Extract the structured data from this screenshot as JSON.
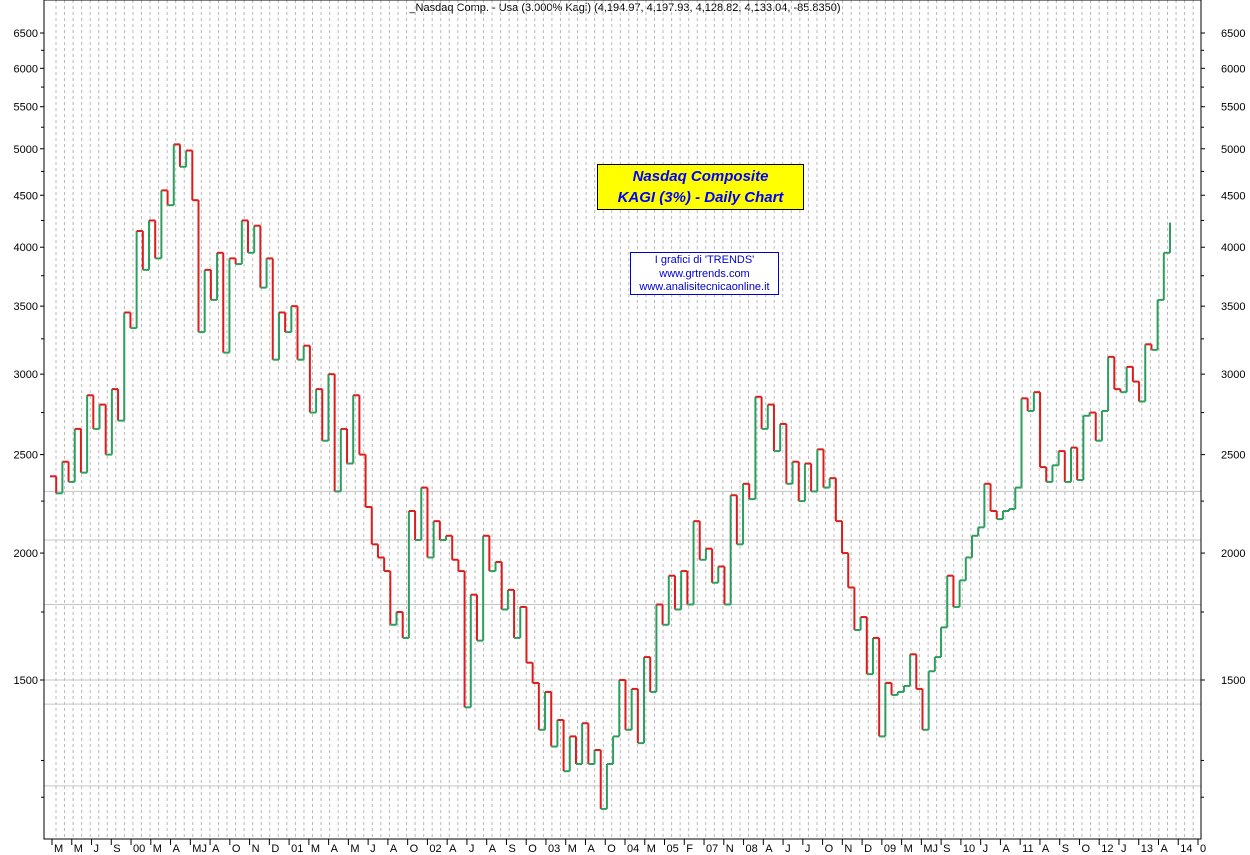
{
  "header": {
    "text": "_Nasdaq Comp. - Usa (3.000% Kagi)  (4,194.97, 4,197.93, 4,128.82, 4,133.04, -85.8350)"
  },
  "title_box": {
    "line1": "Nasdaq Composite",
    "line2": "KAGI (3%) -  Daily Chart"
  },
  "credit_box": {
    "line1": "I grafici di 'TRENDS'",
    "line2": "www.grtrends.com",
    "line3": "www.analisitecnicaonline.it"
  },
  "chart_data": {
    "type": "line",
    "subtype": "kagi",
    "reversal_percent": 3,
    "scale": "log",
    "ylim": [
      1050,
      7000
    ],
    "y_ticks": [
      6500,
      6000,
      5500,
      5000,
      4500,
      4000,
      3500,
      3000,
      2500,
      2000,
      1500
    ],
    "x_tick_labels": [
      "M",
      "M",
      "J",
      "S",
      "00",
      "M",
      "A",
      "MJ",
      "A",
      "O",
      "N",
      "D",
      "01",
      "M",
      "A",
      "M",
      "J",
      "A",
      "O",
      "02",
      "A",
      "J",
      "A",
      "S",
      "O",
      "03",
      "M",
      "A",
      "O",
      "04",
      "M",
      "05",
      "F",
      "07",
      "N",
      "08",
      "A",
      "J",
      "J",
      "O",
      "N",
      "D",
      "09",
      "M",
      "MJ",
      "S",
      "10",
      "J",
      "A",
      "11",
      "A",
      "S",
      "O",
      "12",
      "J",
      "13",
      "A",
      "14",
      "0"
    ],
    "reference_lines": [
      2300,
      2060,
      1780,
      1500,
      1420,
      1180
    ],
    "colors": {
      "up": "#2e9e5e",
      "down": "#dd1c1c",
      "grid": "#b8b8b8",
      "ref": "#c4c4c4"
    },
    "values": [
      2380,
      2290,
      2460,
      2350,
      2650,
      2400,
      2860,
      2650,
      2800,
      2500,
      2900,
      2700,
      3450,
      3330,
      4150,
      3800,
      4250,
      3900,
      4550,
      4400,
      5050,
      4800,
      4980,
      4450,
      3300,
      3800,
      3550,
      3950,
      3150,
      3900,
      3850,
      4250,
      3950,
      4200,
      3650,
      3900,
      3100,
      3450,
      3300,
      3500,
      3100,
      3200,
      2750,
      2900,
      2580,
      3000,
      2300,
      2650,
      2450,
      2860,
      2500,
      2220,
      2040,
      1980,
      1920,
      1700,
      1750,
      1650,
      2200,
      2060,
      2320,
      1980,
      2150,
      2060,
      2080,
      1970,
      1920,
      1410,
      1820,
      1640,
      2080,
      1920,
      1960,
      1760,
      1840,
      1650,
      1770,
      1560,
      1490,
      1340,
      1460,
      1290,
      1370,
      1220,
      1320,
      1240,
      1360,
      1240,
      1280,
      1120,
      1240,
      1320,
      1500,
      1340,
      1470,
      1300,
      1580,
      1460,
      1780,
      1700,
      1900,
      1760,
      1920,
      1780,
      2150,
      1970,
      2020,
      1870,
      1940,
      1780,
      2280,
      2040,
      2340,
      2260,
      2850,
      2650,
      2800,
      2520,
      2680,
      2340,
      2460,
      2250,
      2450,
      2300,
      2530,
      2320,
      2370,
      2150,
      2000,
      1850,
      1680,
      1730,
      1520,
      1650,
      1320,
      1490,
      1450,
      1460,
      1480,
      1590,
      1470,
      1340,
      1530,
      1580,
      1690,
      1900,
      1770,
      1880,
      1980,
      2080,
      2120,
      2340,
      2200,
      2160,
      2200,
      2210,
      2320,
      2840,
      2760,
      2880,
      2430,
      2350,
      2440,
      2520,
      2350,
      2540,
      2360,
      2730,
      2750,
      2580,
      2760,
      3120,
      2900,
      2880,
      3050,
      2950,
      2820,
      3210,
      3170,
      3550,
      3950,
      4230
    ]
  }
}
